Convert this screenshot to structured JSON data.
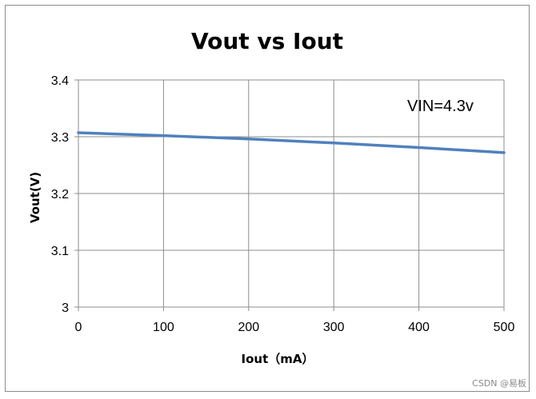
{
  "chart_data": {
    "type": "line",
    "title": "Vout vs Iout",
    "xlabel": "Iout（mA）",
    "ylabel": "Vout(V)",
    "xlim": [
      0,
      500
    ],
    "ylim": [
      3,
      3.4
    ],
    "xticks": [
      0,
      100,
      200,
      300,
      400,
      500
    ],
    "yticks": [
      3,
      3.1,
      3.2,
      3.3,
      3.4
    ],
    "xtick_labels": [
      "0",
      "100",
      "200",
      "300",
      "400",
      "500"
    ],
    "ytick_labels": [
      "3",
      "3.1",
      "3.2",
      "3.3",
      "3.4"
    ],
    "grid": true,
    "annotation": "VIN=4.3v",
    "series_color": "#4f81bd",
    "series": [
      {
        "x": [
          0,
          100,
          200,
          300,
          400,
          500
        ],
        "y": [
          3.307,
          3.302,
          3.296,
          3.289,
          3.281,
          3.272
        ]
      }
    ]
  },
  "watermark": "CSDN @易板"
}
